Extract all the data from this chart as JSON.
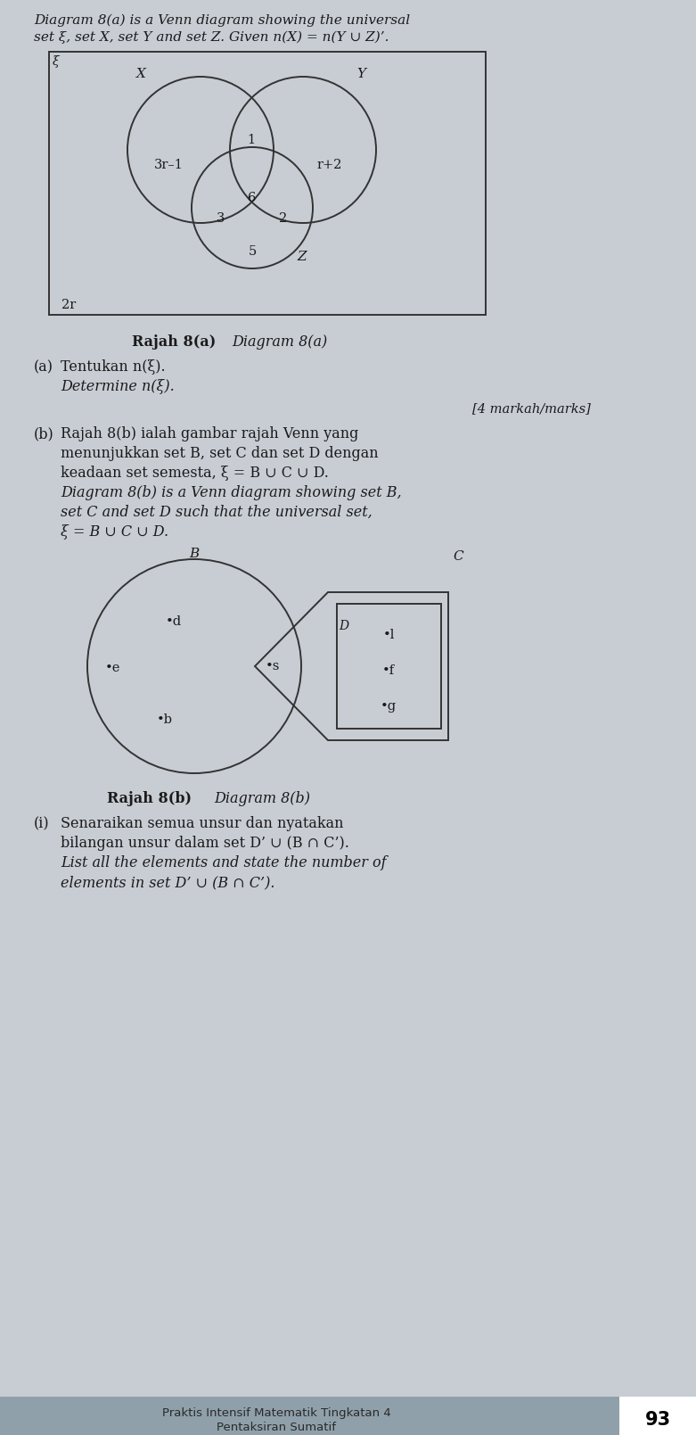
{
  "bg_color": "#c8cdd4",
  "title_text1": "Diagram 8(a) is a Venn diagram showing the universal",
  "title_text2": "set ξ, set X, set Y and set Z. Given n(X) = n(Y ∪ Z)’.",
  "venn_a": {
    "xi": "ξ",
    "X": "X",
    "Y": "Y",
    "Z": "Z",
    "val_x_only": "3r–1",
    "val_xy": "1",
    "val_y_only": "r+2",
    "val_xz": "3",
    "val_xyz": "6",
    "val_yz": "2",
    "val_z_only": "5",
    "val_outside": "2r"
  },
  "caption_a_bold": "Rajah 8(a)",
  "caption_a_italic": "Diagram 8(a)",
  "part_a_label": "(a)",
  "part_a_text1": "Tentukan n(ξ).",
  "part_a_text2": "Determine n(ξ).",
  "marks_text": "[4 markah/marks]",
  "part_b_label": "(b)",
  "part_b_lines": [
    "Rajah 8(b) ialah gambar rajah Venn yang",
    "menunjukkan set B, set C dan set D dengan",
    "keadaan set semesta, ξ = B ∪ C ∪ D."
  ],
  "part_b_italic_lines": [
    "Diagram 8(b) is a Venn diagram showing set B,",
    "set C and set D such that the universal set,",
    "ξ = B ∪ C ∪ D."
  ],
  "venn_b": {
    "B": "B",
    "C": "C",
    "D": "D",
    "d": "d",
    "e": "e",
    "b": "b",
    "s": "s",
    "l": "l",
    "f": "f",
    "g": "g"
  },
  "caption_b_bold": "Rajah 8(b)",
  "caption_b_italic": "Diagram 8(b)",
  "part_i_label": "(i)",
  "part_i_lines": [
    "Senaraikan semua unsur dan nyatakan",
    "bilangan unsur dalam set D’ ∪ (B ∩ C’)."
  ],
  "part_i_italic_lines": [
    "List all the elements and state the number of",
    "elements in set D’ ∪ (B ∩ C’)."
  ],
  "footer_text1": "Praktis Intensif Matematik Tingkatan 4",
  "footer_text2": "Pentaksiran Sumatif",
  "footer_page": "93"
}
